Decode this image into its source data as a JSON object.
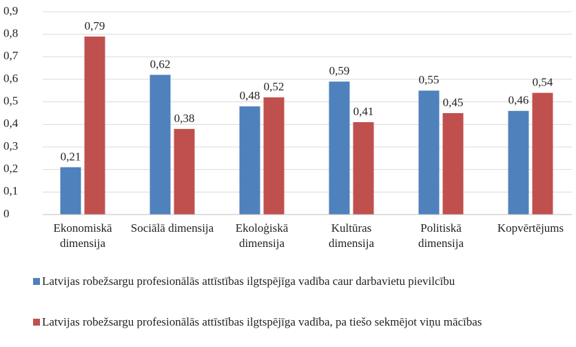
{
  "chart_data": {
    "type": "bar",
    "categories": [
      "Ekonomiskā dimensija",
      "Sociālā dimensija",
      "Ekoloģiskā dimensija",
      "Kultūras dimensija",
      "Politiskā dimensija",
      "Kopvērtējums"
    ],
    "series": [
      {
        "name": "Latvijas robežsargu profesionālās attīstības ilgtspējīga vadība caur darbavietu pievilcību",
        "color": "#4f81bd",
        "values": [
          0.21,
          0.62,
          0.48,
          0.59,
          0.55,
          0.46
        ],
        "value_labels": [
          "0,21",
          "0,62",
          "0,48",
          "0,59",
          "0,55",
          "0,46"
        ]
      },
      {
        "name": "Latvijas robežsargu profesionālās attīstības ilgtspējīga vadība, pa tiešo sekmējot viņu mācības",
        "color": "#c0504d",
        "values": [
          0.79,
          0.38,
          0.52,
          0.41,
          0.45,
          0.54
        ],
        "value_labels": [
          "0,79",
          "0,38",
          "0,52",
          "0,41",
          "0,45",
          "0,54"
        ]
      }
    ],
    "ylim": [
      0,
      0.9
    ],
    "yticks": [
      0,
      {
        "value": 0.1,
        "label": "0,1"
      },
      {
        "value": 0.2,
        "label": "0,2"
      },
      {
        "value": 0.3,
        "label": "0,3"
      },
      {
        "value": 0.4,
        "label": "0,4"
      },
      {
        "value": 0.5,
        "label": "0,5"
      },
      {
        "value": 0.6,
        "label": "0,6"
      },
      {
        "value": 0.7,
        "label": "0,7"
      },
      {
        "value": 0.8,
        "label": "0,8"
      },
      {
        "value": 0.9,
        "label": "0,9"
      }
    ],
    "grid": true,
    "legend": "bottom"
  }
}
